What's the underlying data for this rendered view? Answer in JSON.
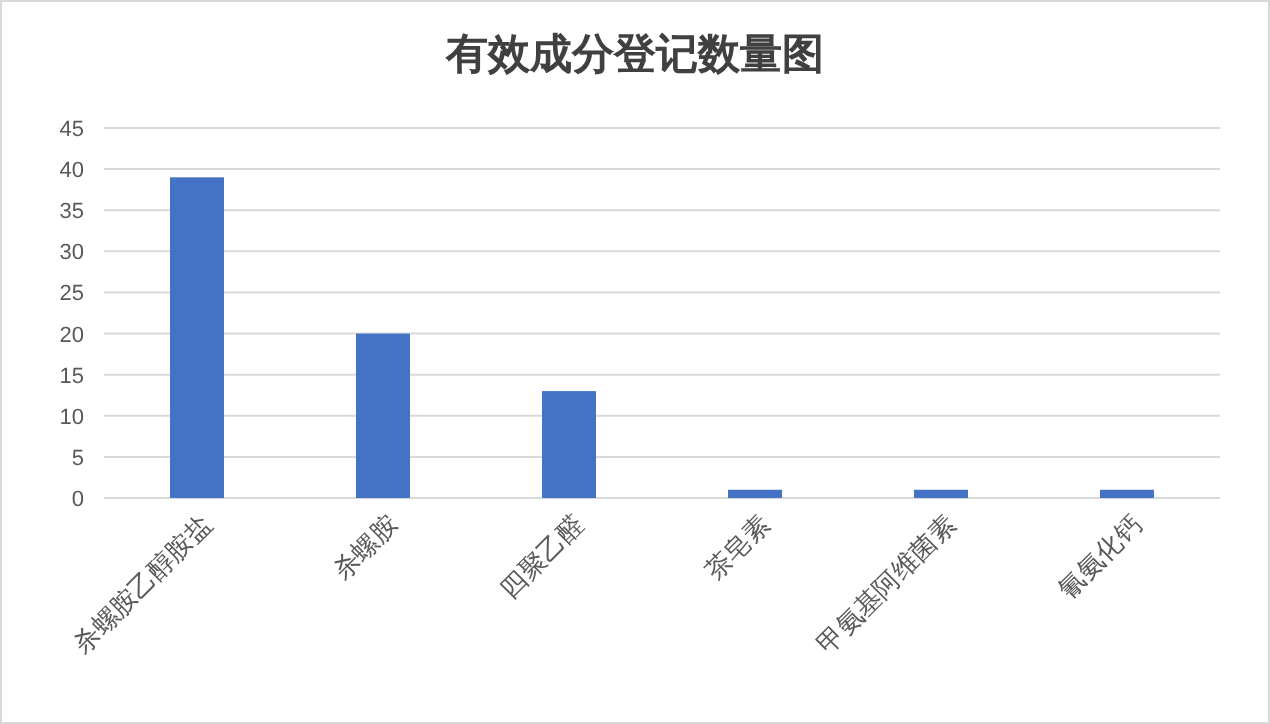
{
  "chart_data": {
    "type": "bar",
    "title": "有效成分登记数量图",
    "categories": [
      "杀螺胺乙醇胺盐",
      "杀螺胺",
      "四聚乙醛",
      "茶皂素",
      "甲氨基阿维菌素",
      "氰氨化钙"
    ],
    "values": [
      39,
      20,
      13,
      1,
      1,
      1
    ],
    "color": "#4472c4",
    "ylim": [
      0,
      45
    ],
    "yticks": [
      0,
      5,
      10,
      15,
      20,
      25,
      30,
      35,
      40,
      45
    ],
    "grid": "y"
  }
}
